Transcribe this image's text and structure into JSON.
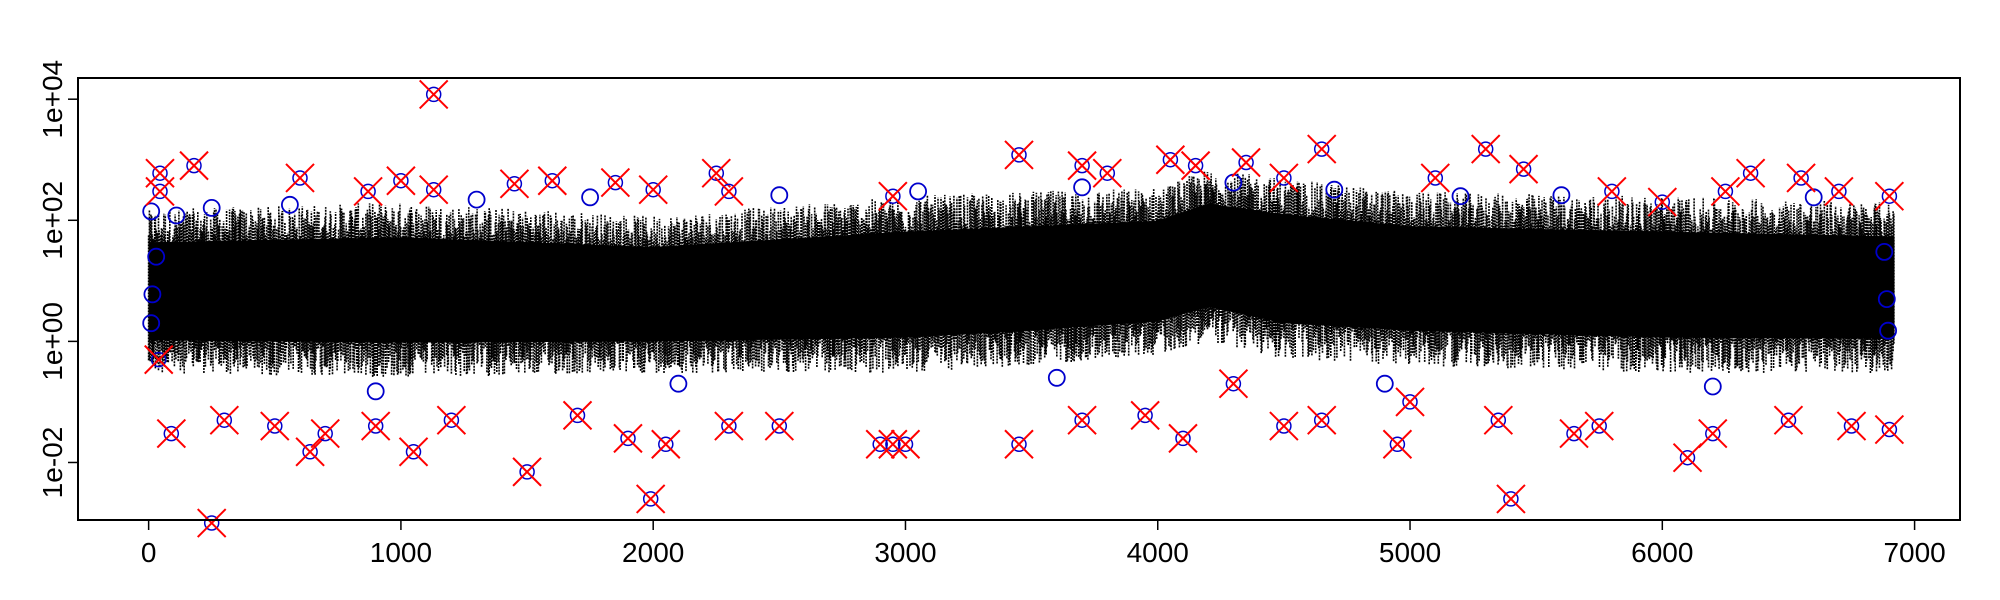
{
  "chart_data": {
    "type": "scatter",
    "title": "",
    "xlabel": "",
    "ylabel": "",
    "xlim": [
      -280,
      7180
    ],
    "ylim_log10": [
      -2.95,
      4.35
    ],
    "y_scale": "log",
    "x_ticks": [
      0,
      1000,
      2000,
      3000,
      4000,
      5000,
      6000,
      7000
    ],
    "x_tick_labels": [
      "0",
      "1000",
      "2000",
      "3000",
      "4000",
      "5000",
      "6000",
      "7000"
    ],
    "y_ticks": [
      0.01,
      1,
      100,
      10000
    ],
    "y_tick_labels": [
      "1e-02",
      "1e+00",
      "1e+02",
      "1e+04"
    ],
    "grid": false,
    "legend": "none",
    "n_points": 6920,
    "series": [
      {
        "role": "dense black dotted band",
        "color": "#000000",
        "marker": "dot",
        "y_band_by_x": [
          {
            "x": 0,
            "low": 0.3,
            "high": 150
          },
          {
            "x": 1000,
            "low": 0.25,
            "high": 200
          },
          {
            "x": 2000,
            "low": 0.3,
            "high": 120
          },
          {
            "x": 3000,
            "low": 0.3,
            "high": 250
          },
          {
            "x": 3500,
            "low": 0.4,
            "high": 300
          },
          {
            "x": 4000,
            "low": 0.6,
            "high": 350
          },
          {
            "x": 4200,
            "low": 1.0,
            "high": 700
          },
          {
            "x": 4500,
            "low": 0.5,
            "high": 500
          },
          {
            "x": 5000,
            "low": 0.4,
            "high": 300
          },
          {
            "x": 6000,
            "low": 0.3,
            "high": 250
          },
          {
            "x": 6900,
            "low": 0.3,
            "high": 200
          }
        ]
      },
      {
        "role": "blue circle points",
        "color": "#0000cc",
        "marker": "circle",
        "points": [
          {
            "x": 10,
            "y": 140
          },
          {
            "x": 10,
            "y": 2
          },
          {
            "x": 15,
            "y": 6
          },
          {
            "x": 30,
            "y": 25
          },
          {
            "x": 110,
            "y": 120
          },
          {
            "x": 250,
            "y": 160
          },
          {
            "x": 560,
            "y": 180
          },
          {
            "x": 1300,
            "y": 220
          },
          {
            "x": 1750,
            "y": 240
          },
          {
            "x": 2500,
            "y": 260
          },
          {
            "x": 3050,
            "y": 300
          },
          {
            "x": 3700,
            "y": 350
          },
          {
            "x": 4300,
            "y": 420
          },
          {
            "x": 4700,
            "y": 320
          },
          {
            "x": 5200,
            "y": 250
          },
          {
            "x": 5600,
            "y": 260
          },
          {
            "x": 6600,
            "y": 240
          },
          {
            "x": 6880,
            "y": 30
          },
          {
            "x": 6890,
            "y": 5
          },
          {
            "x": 6895,
            "y": 1.5
          },
          {
            "x": 900,
            "y": 0.15
          },
          {
            "x": 2100,
            "y": 0.2
          },
          {
            "x": 3600,
            "y": 0.25
          },
          {
            "x": 4900,
            "y": 0.2
          },
          {
            "x": 6200,
            "y": 0.18
          }
        ]
      },
      {
        "role": "red cross outliers (circled)",
        "color": "#ff0000",
        "marker": "x-with-circle",
        "points": [
          {
            "x": 45,
            "y": 600
          },
          {
            "x": 45,
            "y": 300
          },
          {
            "x": 180,
            "y": 800
          },
          {
            "x": 600,
            "y": 500
          },
          {
            "x": 870,
            "y": 300
          },
          {
            "x": 1000,
            "y": 450
          },
          {
            "x": 1130,
            "y": 12000
          },
          {
            "x": 1130,
            "y": 320
          },
          {
            "x": 1450,
            "y": 400
          },
          {
            "x": 1600,
            "y": 450
          },
          {
            "x": 1850,
            "y": 420
          },
          {
            "x": 2000,
            "y": 320
          },
          {
            "x": 2250,
            "y": 600
          },
          {
            "x": 2300,
            "y": 300
          },
          {
            "x": 2950,
            "y": 250
          },
          {
            "x": 3450,
            "y": 1200
          },
          {
            "x": 3700,
            "y": 800
          },
          {
            "x": 3800,
            "y": 600
          },
          {
            "x": 4050,
            "y": 1000
          },
          {
            "x": 4150,
            "y": 800
          },
          {
            "x": 4350,
            "y": 900
          },
          {
            "x": 4500,
            "y": 500
          },
          {
            "x": 4650,
            "y": 1500
          },
          {
            "x": 5100,
            "y": 500
          },
          {
            "x": 5300,
            "y": 1500
          },
          {
            "x": 5450,
            "y": 700
          },
          {
            "x": 5800,
            "y": 300
          },
          {
            "x": 6000,
            "y": 200
          },
          {
            "x": 6250,
            "y": 300
          },
          {
            "x": 6350,
            "y": 600
          },
          {
            "x": 6550,
            "y": 500
          },
          {
            "x": 6700,
            "y": 300
          },
          {
            "x": 6900,
            "y": 250
          },
          {
            "x": 40,
            "y": 0.5
          },
          {
            "x": 90,
            "y": 0.03
          },
          {
            "x": 250,
            "y": 0.001
          },
          {
            "x": 300,
            "y": 0.05
          },
          {
            "x": 500,
            "y": 0.04
          },
          {
            "x": 640,
            "y": 0.015
          },
          {
            "x": 700,
            "y": 0.03
          },
          {
            "x": 900,
            "y": 0.04
          },
          {
            "x": 1050,
            "y": 0.015
          },
          {
            "x": 1200,
            "y": 0.05
          },
          {
            "x": 1500,
            "y": 0.007
          },
          {
            "x": 1700,
            "y": 0.06
          },
          {
            "x": 1900,
            "y": 0.025
          },
          {
            "x": 1990,
            "y": 0.0025
          },
          {
            "x": 2050,
            "y": 0.02
          },
          {
            "x": 2300,
            "y": 0.04
          },
          {
            "x": 2500,
            "y": 0.04
          },
          {
            "x": 2900,
            "y": 0.02
          },
          {
            "x": 2950,
            "y": 0.02
          },
          {
            "x": 3000,
            "y": 0.02
          },
          {
            "x": 3450,
            "y": 0.02
          },
          {
            "x": 3700,
            "y": 0.05
          },
          {
            "x": 3950,
            "y": 0.06
          },
          {
            "x": 4100,
            "y": 0.025
          },
          {
            "x": 4300,
            "y": 0.2
          },
          {
            "x": 4500,
            "y": 0.04
          },
          {
            "x": 4650,
            "y": 0.05
          },
          {
            "x": 4950,
            "y": 0.02
          },
          {
            "x": 5000,
            "y": 0.1
          },
          {
            "x": 5350,
            "y": 0.05
          },
          {
            "x": 5400,
            "y": 0.0025
          },
          {
            "x": 5650,
            "y": 0.03
          },
          {
            "x": 5750,
            "y": 0.04
          },
          {
            "x": 6100,
            "y": 0.012
          },
          {
            "x": 6200,
            "y": 0.03
          },
          {
            "x": 6500,
            "y": 0.05
          },
          {
            "x": 6750,
            "y": 0.04
          },
          {
            "x": 6900,
            "y": 0.035
          }
        ]
      }
    ]
  }
}
